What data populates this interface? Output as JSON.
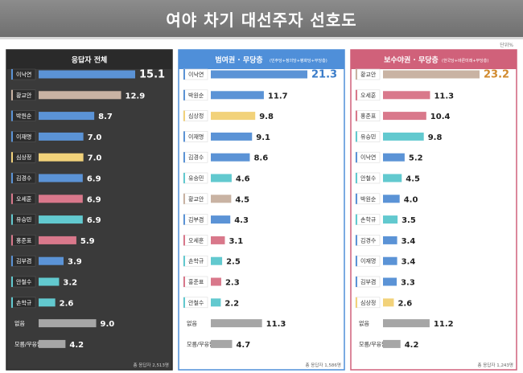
{
  "title": "여야 차기 대선주자 선호도",
  "unit": "단위%",
  "chart_data": [
    {
      "type": "bar",
      "title": "응답자 전체",
      "subtitle": "",
      "categories": [
        "이낙연",
        "황교안",
        "박원순",
        "이재명",
        "심상정",
        "김경수",
        "오세훈",
        "유승민",
        "홍준표",
        "김부겸",
        "안철수",
        "손학규",
        "없음",
        "모름/무응답"
      ],
      "values": [
        15.1,
        12.9,
        8.7,
        7.0,
        7.0,
        6.9,
        6.9,
        6.9,
        5.9,
        3.9,
        3.2,
        2.6,
        9.0,
        4.2
      ],
      "value_labels": [
        "15.1",
        "12.9",
        "8.7",
        "7.0",
        "7.0",
        "6.9",
        "6.9",
        "6.9",
        "5.9",
        "3.9",
        "3.2",
        "2.6",
        "9.0",
        "4.2"
      ],
      "colors": [
        "#5b93d6",
        "#c9b3a3",
        "#5b93d6",
        "#5b93d6",
        "#f2d27a",
        "#5b93d6",
        "#d9788b",
        "#62c9cf",
        "#d9788b",
        "#5b93d6",
        "#62c9cf",
        "#62c9cf",
        "#a6a6a6",
        "#a6a6a6"
      ],
      "footnote": "총 응답자 2,513명",
      "ylim": [
        0,
        16
      ]
    },
    {
      "type": "bar",
      "title": "범여권 · 무당층",
      "subtitle": "(민주당+정의당+평화당+무당층)",
      "categories": [
        "이낙연",
        "박원순",
        "심상정",
        "이재명",
        "김경수",
        "유승민",
        "황교안",
        "김부겸",
        "오세훈",
        "손학규",
        "홍준표",
        "안철수",
        "없음",
        "모름/무응답"
      ],
      "values": [
        21.3,
        11.7,
        9.8,
        9.1,
        8.6,
        4.6,
        4.5,
        4.3,
        3.1,
        2.5,
        2.3,
        2.2,
        11.3,
        4.7
      ],
      "value_labels": [
        "21.3",
        "11.7",
        "9.8",
        "9.1",
        "8.6",
        "4.6",
        "4.5",
        "4.3",
        "3.1",
        "2.5",
        "2.3",
        "2.2",
        "11.3",
        "4.7"
      ],
      "colors": [
        "#5b93d6",
        "#5b93d6",
        "#f2d27a",
        "#5b93d6",
        "#5b93d6",
        "#62c9cf",
        "#c9b3a3",
        "#5b93d6",
        "#d9788b",
        "#62c9cf",
        "#d9788b",
        "#62c9cf",
        "#a6a6a6",
        "#a6a6a6"
      ],
      "footnote": "총 응답자 1,586명",
      "ylim": [
        0,
        22
      ]
    },
    {
      "type": "bar",
      "title": "보수야권 · 무당층",
      "subtitle": "(한국당+바른미래+무당층)",
      "categories": [
        "황교안",
        "오세훈",
        "홍준표",
        "유승민",
        "이낙연",
        "안철수",
        "박원순",
        "손학규",
        "김경수",
        "이재명",
        "김부겸",
        "심상정",
        "없음",
        "모름/무응답"
      ],
      "values": [
        23.2,
        11.3,
        10.4,
        9.8,
        5.2,
        4.5,
        4.0,
        3.5,
        3.4,
        3.4,
        3.3,
        2.6,
        11.2,
        4.2
      ],
      "value_labels": [
        "23.2",
        "11.3",
        "10.4",
        "9.8",
        "5.2",
        "4.5",
        "4.0",
        "3.5",
        "3.4",
        "3.4",
        "3.3",
        "2.6",
        "11.2",
        "4.2"
      ],
      "colors": [
        "#c9b3a3",
        "#d9788b",
        "#d9788b",
        "#62c9cf",
        "#5b93d6",
        "#62c9cf",
        "#5b93d6",
        "#62c9cf",
        "#5b93d6",
        "#5b93d6",
        "#5b93d6",
        "#f2d27a",
        "#a6a6a6",
        "#a6a6a6"
      ],
      "footnote": "총 응답자 1,243명",
      "ylim": [
        0,
        24
      ]
    }
  ],
  "theme": {
    "panel_bg": [
      "#3a3a3a",
      "#ffffff",
      "#ffffff"
    ],
    "header_bg": [
      "#2a2a2a",
      "#4f8fd9",
      "#d0617a"
    ],
    "border": [
      "#2a2a2a",
      "#4f8fd9",
      "#d0617a"
    ],
    "label_color": [
      "#ffffff",
      "#333333",
      "#333333"
    ],
    "value_color": [
      "#ffffff",
      "#222222",
      "#222222"
    ],
    "top_value_color": [
      "#ffffff",
      "#3a7cc9",
      "#d18a2e"
    ]
  }
}
